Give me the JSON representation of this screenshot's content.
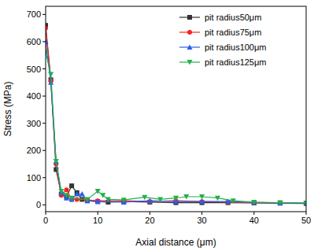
{
  "chart_data": {
    "type": "line",
    "x_label": "Axial distance (μm)",
    "y_label": "Stress (MPa)",
    "xlim": [
      0,
      50
    ],
    "ylim": [
      -25,
      730
    ],
    "xticks": [
      0,
      10,
      20,
      30,
      40,
      50
    ],
    "yticks": [
      0,
      100,
      200,
      300,
      400,
      500,
      600,
      700
    ],
    "legend": "upper right",
    "series": [
      {
        "name": "pit radius50μm",
        "color": "#333333",
        "marker": "square",
        "x": [
          0,
          1,
          2,
          3,
          4,
          5,
          6,
          7,
          8,
          10,
          12,
          15,
          20,
          25,
          30,
          35,
          40,
          45,
          50
        ],
        "values": [
          660,
          460,
          130,
          40,
          30,
          70,
          45,
          20,
          15,
          12,
          10,
          12,
          10,
          8,
          8,
          8,
          7,
          6,
          5
        ]
      },
      {
        "name": "pit radius75μm",
        "color": "#ff2020",
        "marker": "circle",
        "x": [
          0,
          1,
          2,
          3,
          4,
          5,
          6,
          8,
          10,
          15,
          20,
          25,
          30,
          35,
          40,
          45,
          50
        ],
        "values": [
          650,
          455,
          150,
          35,
          55,
          20,
          20,
          18,
          15,
          15,
          12,
          15,
          12,
          10,
          8,
          7,
          6
        ]
      },
      {
        "name": "pit radius100μm",
        "color": "#2a5ee8",
        "marker": "triangle",
        "x": [
          0,
          1,
          2,
          3,
          4,
          5,
          6,
          7,
          8,
          10,
          15,
          20,
          25,
          30,
          35,
          40,
          45,
          50
        ],
        "values": [
          600,
          450,
          160,
          45,
          25,
          20,
          40,
          40,
          15,
          12,
          10,
          15,
          12,
          12,
          12,
          9,
          7,
          6
        ]
      },
      {
        "name": "pit radius125μm",
        "color": "#22b04b",
        "marker": "triangle-down",
        "x": [
          0,
          1,
          2,
          3,
          4,
          5,
          8,
          10,
          11,
          12,
          15,
          19,
          22,
          25,
          27,
          30,
          33,
          36,
          40,
          45,
          50
        ],
        "values": [
          560,
          480,
          160,
          50,
          35,
          25,
          20,
          50,
          35,
          20,
          18,
          28,
          20,
          25,
          30,
          30,
          25,
          15,
          10,
          8,
          7
        ]
      }
    ]
  }
}
